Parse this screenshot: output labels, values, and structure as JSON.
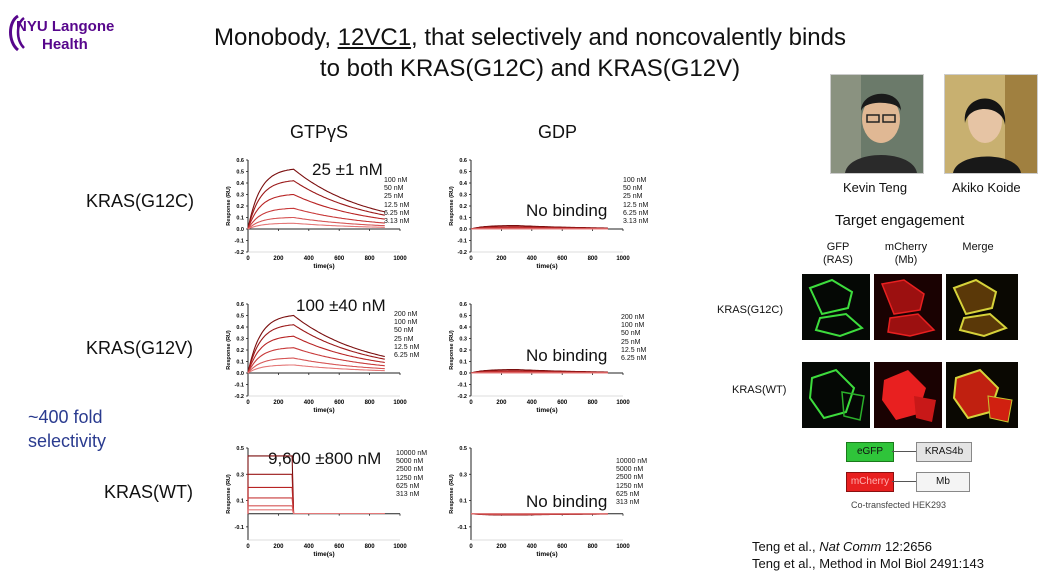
{
  "logo": {
    "text_line1": "NYU Langone",
    "text_line2": "Health",
    "color": "#57068c"
  },
  "title": {
    "line1_pre": "Monobody, ",
    "line1_underlined": "12VC1",
    "line1_post": ", that selectively and noncovalently binds",
    "line2": "to both KRAS(G12C) and KRAS(G12V)"
  },
  "columns": {
    "gtp": "GTPγS",
    "gdp": "GDP"
  },
  "rows": [
    {
      "label": "KRAS(G12C)",
      "kd": "25 ±1 nM",
      "gtp_concs": [
        "100 nM",
        "50 nM",
        "25 nM",
        "12.5 nM",
        "6.25 nM",
        "3.13 nM"
      ],
      "gdp_concs": [
        "100 nM",
        "50 nM",
        "25 nM",
        "12.5 nM",
        "6.25 nM",
        "3.13 nM"
      ],
      "no_binding": "No binding"
    },
    {
      "label": "KRAS(G12V)",
      "kd": "100 ±40 nM",
      "gtp_concs": [
        "200 nM",
        "100 nM",
        "50 nM",
        "25 nM",
        "12.5 nM",
        "6.25 nM"
      ],
      "gdp_concs": [
        "200 nM",
        "100 nM",
        "50 nM",
        "25 nM",
        "12.5 nM",
        "6.25 nM"
      ],
      "no_binding": "No binding"
    },
    {
      "label": "KRAS(WT)",
      "kd": "9,600 ±800 nM",
      "gtp_concs": [
        "10000 nM",
        "5000 nM",
        "2500 nM",
        "1250 nM",
        "625 nM",
        "313 nM"
      ],
      "gdp_concs": [
        "10000 nM",
        "5000 nM",
        "2500 nM",
        "1250 nM",
        "625 nM",
        "313 nM"
      ],
      "no_binding": "No binding"
    }
  ],
  "axes": {
    "ylabel": "Response (RU)",
    "xlabel": "time(s)",
    "xticks": [
      "0",
      "200",
      "400",
      "600",
      "800",
      "1000"
    ],
    "yticks_top": [
      "0.6",
      "0.5",
      "0.4",
      "0.3",
      "0.2",
      "0.1",
      "0.0",
      "-0.1",
      "-0.2"
    ],
    "yticks_wt": [
      "0.4",
      "0.2",
      "0.0",
      "-0.2"
    ]
  },
  "selectivity": {
    "line1": "~400 fold",
    "line2": "selectivity"
  },
  "people": [
    {
      "name": "Kevin Teng"
    },
    {
      "name": "Akiko Koide"
    }
  ],
  "target": {
    "title": "Target engagement",
    "headers": [
      "GFP\n(RAS)",
      "mCherry\n(Mb)",
      "Merge"
    ],
    "header_gfp": [
      "GFP",
      "(RAS)"
    ],
    "header_mch": [
      "mCherry",
      "(Mb)"
    ],
    "header_merge": "Merge",
    "row1": "KRAS(G12C)",
    "row2": "KRAS(WT)",
    "construct1": {
      "tag": "eGFP",
      "protein": "KRAS4b"
    },
    "construct2": {
      "tag": "mCherry",
      "protein": "Mb"
    },
    "cotrans": "Co-transfected HEK293"
  },
  "citations": {
    "c1_pre": "Teng et al., ",
    "c1_journal": "Nat Comm",
    "c1_post": " 12:2656",
    "c2": "Teng et al., Method in Mol Biol 2491:143"
  },
  "chart_data": [
    {
      "type": "line",
      "panel": "G12C GTPγS",
      "xlabel": "time(s)",
      "ylabel": "Response (RU)",
      "xlim": [
        0,
        1000
      ],
      "ylim": [
        -0.2,
        0.6
      ],
      "series": [
        {
          "name": "100 nM",
          "peak": 0.52
        },
        {
          "name": "50 nM",
          "peak": 0.42
        },
        {
          "name": "25 nM",
          "peak": 0.3
        },
        {
          "name": "12.5 nM",
          "peak": 0.18
        },
        {
          "name": "6.25 nM",
          "peak": 0.1
        },
        {
          "name": "3.13 nM",
          "peak": 0.05
        }
      ],
      "assoc_end": 300,
      "end": 900
    },
    {
      "type": "line",
      "panel": "G12C GDP",
      "xlabel": "time(s)",
      "ylabel": "Response (RU)",
      "xlim": [
        0,
        1000
      ],
      "ylim": [
        -0.2,
        0.6
      ],
      "series": [
        {
          "name": "100 nM",
          "peak": 0.03
        },
        {
          "name": "50 nM",
          "peak": 0.02
        },
        {
          "name": "25 nM",
          "peak": 0.015
        },
        {
          "name": "12.5 nM",
          "peak": 0.01
        },
        {
          "name": "6.25 nM",
          "peak": 0.005
        },
        {
          "name": "3.13 nM",
          "peak": 0.0
        }
      ],
      "assoc_end": 300,
      "end": 900
    },
    {
      "type": "line",
      "panel": "G12V GTPγS",
      "xlabel": "time(s)",
      "ylabel": "Response (RU)",
      "xlim": [
        0,
        1000
      ],
      "ylim": [
        -0.2,
        0.6
      ],
      "series": [
        {
          "name": "200 nM",
          "peak": 0.5
        },
        {
          "name": "100 nM",
          "peak": 0.42
        },
        {
          "name": "50 nM",
          "peak": 0.32
        },
        {
          "name": "25 nM",
          "peak": 0.22
        },
        {
          "name": "12.5 nM",
          "peak": 0.13
        },
        {
          "name": "6.25 nM",
          "peak": 0.07
        }
      ],
      "assoc_end": 300,
      "end": 900
    },
    {
      "type": "line",
      "panel": "G12V GDP",
      "xlabel": "time(s)",
      "ylabel": "Response (RU)",
      "xlim": [
        0,
        1000
      ],
      "ylim": [
        -0.2,
        0.6
      ],
      "series": [
        {
          "name": "200 nM",
          "peak": 0.03
        },
        {
          "name": "100 nM",
          "peak": 0.02
        },
        {
          "name": "50 nM",
          "peak": 0.015
        },
        {
          "name": "25 nM",
          "peak": 0.01
        },
        {
          "name": "12.5 nM",
          "peak": 0.005
        },
        {
          "name": "6.25 nM",
          "peak": 0.0
        }
      ],
      "assoc_end": 300,
      "end": 900
    },
    {
      "type": "line",
      "panel": "WT GTPγS",
      "xlabel": "time(s)",
      "ylabel": "Response (RU)",
      "xlim": [
        0,
        1000
      ],
      "ylim": [
        -0.2,
        0.5
      ],
      "series": [
        {
          "name": "10000 nM",
          "peak": 0.44
        },
        {
          "name": "5000 nM",
          "peak": 0.3
        },
        {
          "name": "2500 nM",
          "peak": 0.2
        },
        {
          "name": "1250 nM",
          "peak": 0.12
        },
        {
          "name": "625 nM",
          "peak": 0.06
        },
        {
          "name": "313 nM",
          "peak": 0.03
        }
      ],
      "assoc_end": 300,
      "end": 900,
      "square": true
    },
    {
      "type": "line",
      "panel": "WT GDP",
      "xlabel": "time(s)",
      "ylabel": "Response (RU)",
      "xlim": [
        0,
        1000
      ],
      "ylim": [
        -0.2,
        0.5
      ],
      "series": [
        {
          "name": "10000 nM",
          "peak": -0.01
        },
        {
          "name": "5000 nM",
          "peak": -0.008
        },
        {
          "name": "2500 nM",
          "peak": -0.006
        },
        {
          "name": "1250 nM",
          "peak": -0.004
        },
        {
          "name": "625 nM",
          "peak": -0.002
        },
        {
          "name": "313 nM",
          "peak": 0.0
        }
      ],
      "assoc_end": 300,
      "end": 900
    }
  ]
}
